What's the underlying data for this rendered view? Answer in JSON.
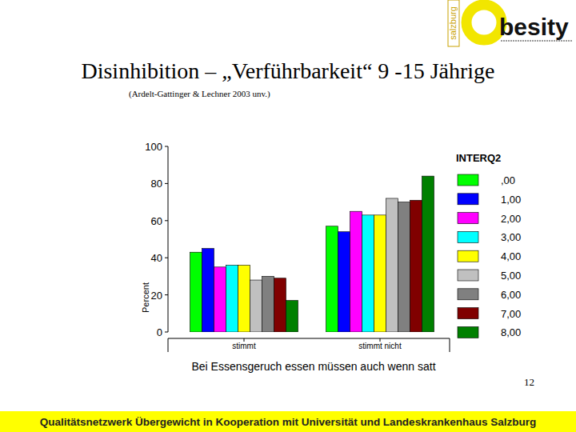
{
  "slide": {
    "title": "Disinhibition – „Verführbarkeit“ 9 -15 Jährige",
    "subtitle": "(Ardelt-Gattinger & Lechner 2003 unv.)",
    "logo_vertical": "salzburg",
    "logo_word": "besity",
    "page_number": "12",
    "footer": "Qualitätsnetzwerk Übergewicht in Kooperation mit Universität und Landeskrankenhaus Salzburg"
  },
  "chart_data": {
    "type": "bar",
    "x_label": "Bei Essensgeruch essen müssen auch wenn satt",
    "y_label": "Percent",
    "legend_title": "INTERQ2",
    "categories": [
      "stimmt",
      "stimmt nicht"
    ],
    "series": [
      {
        "name": ",00",
        "color": "#00ff00",
        "values": [
          43,
          57
        ]
      },
      {
        "name": "1,00",
        "color": "#0000ff",
        "values": [
          45,
          54
        ]
      },
      {
        "name": "2,00",
        "color": "#ff00ff",
        "values": [
          35,
          65
        ]
      },
      {
        "name": "3,00",
        "color": "#00ffff",
        "values": [
          36,
          63
        ]
      },
      {
        "name": "4,00",
        "color": "#ffff00",
        "values": [
          36,
          63
        ]
      },
      {
        "name": "5,00",
        "color": "#c0c0c0",
        "values": [
          28,
          72
        ]
      },
      {
        "name": "6,00",
        "color": "#808080",
        "values": [
          30,
          70
        ]
      },
      {
        "name": "7,00",
        "color": "#800000",
        "values": [
          29,
          71
        ]
      },
      {
        "name": "8,00",
        "color": "#008000",
        "values": [
          17,
          84
        ]
      }
    ],
    "ylim": [
      0,
      100
    ],
    "yticks": [
      0,
      20,
      40,
      60,
      80,
      100
    ],
    "grid": false,
    "legend": "right"
  }
}
